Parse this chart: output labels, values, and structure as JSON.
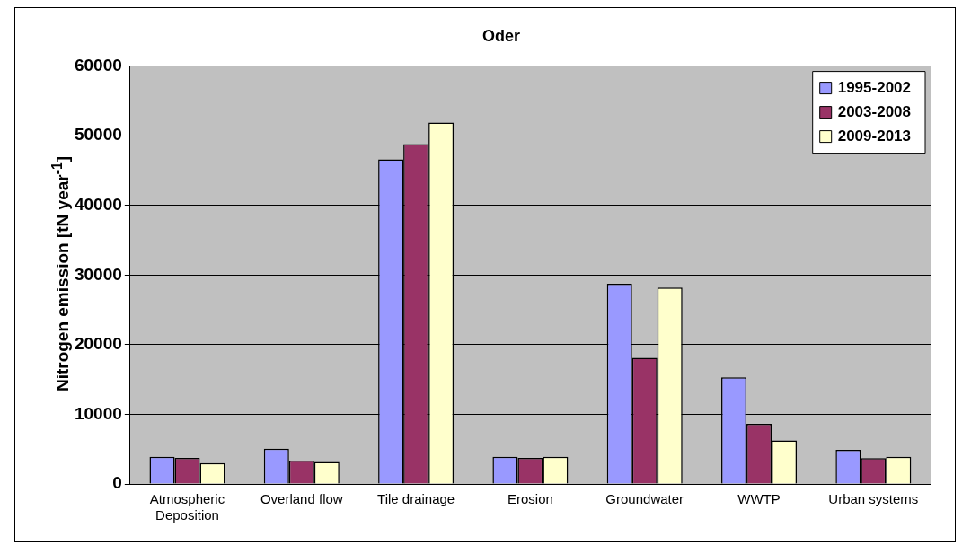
{
  "chart_data": {
    "type": "bar",
    "title": "Oder",
    "ylabel": "Nitrogen emission [tN year$^{-1}$]",
    "categories": [
      "Atmospheric Deposition",
      "Overland flow",
      "Tile drainage",
      "Erosion",
      "Groundwater",
      "WWTP",
      "Urban systems"
    ],
    "series": [
      {
        "name": "1995-2002",
        "color": "#9999ff",
        "values": [
          3900,
          5050,
          46600,
          3900,
          28750,
          15300,
          4900
        ]
      },
      {
        "name": "2003-2008",
        "color": "#993366",
        "values": [
          3750,
          3350,
          48800,
          3750,
          18100,
          8650,
          3700
        ]
      },
      {
        "name": "2009-2013",
        "color": "#ffffcc",
        "values": [
          3000,
          3150,
          51900,
          3900,
          28200,
          6250,
          3900
        ]
      }
    ],
    "ylim": [
      0,
      60000
    ],
    "yticks": [
      0,
      10000,
      20000,
      30000,
      40000,
      50000,
      60000
    ],
    "grid": "y",
    "legend": "top right"
  }
}
